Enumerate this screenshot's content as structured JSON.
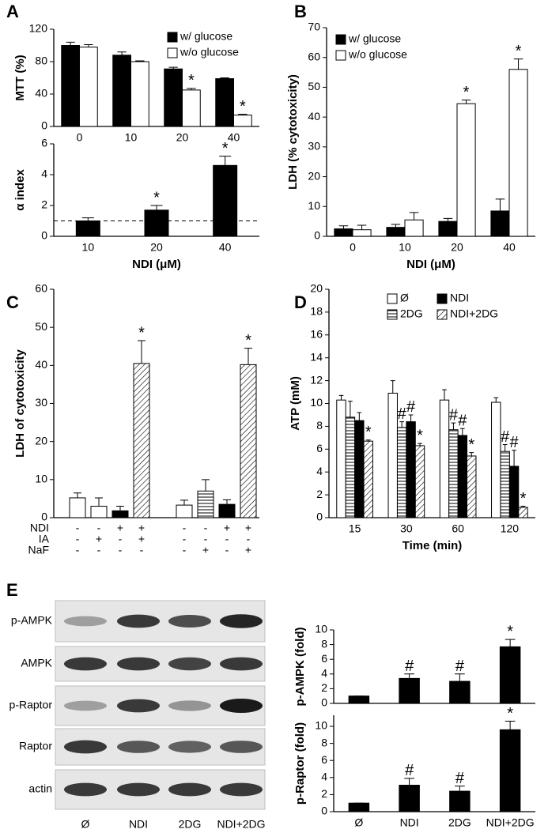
{
  "chart_data": [
    {
      "type": "bar",
      "panel": "A",
      "ylabel": "MTT (%)",
      "categories": [
        "0",
        "10",
        "20",
        "40"
      ],
      "ylim": [
        0,
        120
      ],
      "yticks": [
        0,
        40,
        80,
        120
      ],
      "legend": "upper right",
      "series": [
        {
          "name": "w/ glucose",
          "fill": "black",
          "values": [
            100,
            88,
            71,
            59
          ],
          "errors": [
            4,
            4,
            2,
            1
          ]
        },
        {
          "name": "w/o glucose",
          "fill": "white",
          "values": [
            98,
            80,
            45,
            14
          ],
          "errors": [
            3,
            1,
            2,
            1
          ],
          "annotations": [
            null,
            null,
            "*",
            "*"
          ]
        }
      ]
    },
    {
      "type": "bar",
      "ylabel": "α index",
      "xlabel": "NDI (μM)",
      "categories": [
        "10",
        "20",
        "40"
      ],
      "ylim": [
        0,
        6
      ],
      "yticks": [
        0,
        2,
        4,
        6
      ],
      "hline": 1,
      "series": [
        {
          "fill": "black",
          "values": [
            1,
            1.7,
            4.6
          ],
          "errors": [
            0.2,
            0.3,
            0.6
          ],
          "annotations": [
            null,
            "*",
            "*"
          ]
        }
      ]
    },
    {
      "type": "bar",
      "panel": "B",
      "ylabel": "LDH (% cytotoxicity)",
      "xlabel": "NDI (μM)",
      "categories": [
        "0",
        "10",
        "20",
        "40"
      ],
      "ylim": [
        0,
        70
      ],
      "yticks": [
        0,
        10,
        20,
        30,
        40,
        50,
        60,
        70
      ],
      "legend": "upper left",
      "series": [
        {
          "name": "w/ glucose",
          "fill": "black",
          "values": [
            2.5,
            3,
            5,
            8.5
          ],
          "errors": [
            1,
            1,
            1,
            4
          ]
        },
        {
          "name": "w/o glucose",
          "fill": "white",
          "values": [
            2.2,
            5.5,
            44.5,
            56
          ],
          "errors": [
            1.5,
            2.5,
            1.2,
            3.5
          ],
          "annotations": [
            null,
            null,
            "*",
            "*"
          ]
        }
      ]
    },
    {
      "type": "bar",
      "panel": "C",
      "ylabel": "LDH of cytotoxicity",
      "ylim": [
        0,
        60
      ],
      "yticks": [
        0,
        10,
        20,
        30,
        40,
        50,
        60
      ],
      "values": [
        5.2,
        3,
        1.8,
        40.5,
        3.3,
        7,
        3.5,
        40.2
      ],
      "errors": [
        1.3,
        2.2,
        1.2,
        6,
        1.3,
        3,
        1.2,
        4.3
      ],
      "fills": [
        "white",
        "white",
        "black",
        "hatch",
        "white",
        "stripes",
        "black",
        "hatch"
      ],
      "annotations": [
        null,
        null,
        null,
        "*",
        null,
        null,
        null,
        "*"
      ],
      "conditions": [
        {
          "name": "NDI",
          "signs": [
            "-",
            "-",
            "+",
            "+",
            "-",
            "-",
            "+",
            "+"
          ]
        },
        {
          "name": "IA",
          "signs": [
            "-",
            "+",
            "-",
            "+",
            "-",
            "-",
            "-",
            "-"
          ]
        },
        {
          "name": "NaF",
          "signs": [
            "-",
            "-",
            "-",
            "-",
            "-",
            "+",
            "-",
            "+"
          ]
        }
      ]
    },
    {
      "type": "bar",
      "panel": "D",
      "ylabel": "ATP (mM)",
      "xlabel": "Time (min)",
      "categories": [
        "15",
        "30",
        "60",
        "120"
      ],
      "ylim": [
        0,
        20
      ],
      "yticks": [
        0,
        2,
        4,
        6,
        8,
        10,
        12,
        14,
        16,
        18,
        20
      ],
      "legend": "upper right",
      "legend_columns": 2,
      "series": [
        {
          "name": "Ø",
          "fill": "white",
          "values": [
            10.3,
            10.9,
            10.3,
            10.1
          ],
          "errors": [
            0.4,
            1.1,
            0.9,
            0.4
          ]
        },
        {
          "name": "2DG",
          "fill": "stripes",
          "values": [
            8.8,
            7.9,
            7.7,
            5.8
          ],
          "errors": [
            1.4,
            0.5,
            0.6,
            0.6
          ],
          "annotations": [
            null,
            "#",
            "#",
            "#"
          ]
        },
        {
          "name": "NDI",
          "fill": "black",
          "values": [
            8.5,
            8.4,
            7.2,
            4.5
          ],
          "errors": [
            0.7,
            0.6,
            0.6,
            1.4
          ],
          "annotations": [
            null,
            "#",
            "#",
            "#"
          ]
        },
        {
          "name": "NDI+2DG",
          "fill": "hatch",
          "values": [
            6.7,
            6.3,
            5.4,
            0.9
          ],
          "errors": [
            0.1,
            0.2,
            0.3,
            0.1
          ],
          "annotations": [
            "*",
            "*",
            "*",
            "*"
          ]
        }
      ]
    },
    {
      "type": "bar",
      "ylabel": "p-AMPK (fold)",
      "ylim": [
        0,
        10
      ],
      "yticks": [
        0,
        2,
        4,
        6,
        8,
        10
      ],
      "fill": "black",
      "values": [
        1,
        3.4,
        3.0,
        7.7
      ],
      "errors": [
        0,
        0.6,
        1,
        1
      ],
      "annotations": [
        null,
        "#",
        "#",
        "*"
      ]
    },
    {
      "type": "bar",
      "ylabel": "p-Raptor (fold)",
      "categories": [
        "Ø",
        "NDI",
        "2DG",
        "NDI+2DG"
      ],
      "ylim": [
        0,
        11.3
      ],
      "yticks": [
        0,
        2,
        4,
        6,
        8,
        10
      ],
      "fill": "black",
      "values": [
        1,
        3.1,
        2.4,
        9.6
      ],
      "errors": [
        0,
        0.8,
        0.6,
        1
      ],
      "annotations": [
        null,
        "#",
        "#",
        "*"
      ]
    }
  ],
  "blot": {
    "panel": "E",
    "rows": [
      "p-AMPK",
      "AMPK",
      "p-Raptor",
      "Raptor",
      "actin"
    ],
    "lanes": [
      "Ø",
      "NDI",
      "2DG",
      "NDI+2DG"
    ]
  }
}
